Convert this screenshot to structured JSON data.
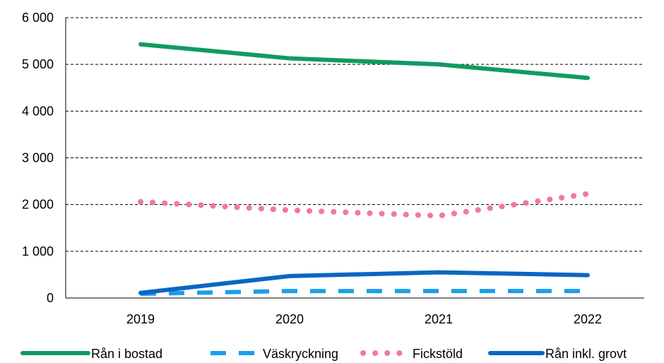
{
  "chart_data": {
    "type": "line",
    "categories": [
      "2019",
      "2020",
      "2021",
      "2022"
    ],
    "ylim": [
      0,
      6000
    ],
    "yticks": [
      0,
      1000,
      2000,
      3000,
      4000,
      5000,
      6000
    ],
    "ytick_labels": [
      "0",
      "1 000",
      "2 000",
      "3 000",
      "4 000",
      "5 000",
      "6 000"
    ],
    "grid": true,
    "legend_position": "bottom",
    "series": [
      {
        "name": "Rån i bostad",
        "values": [
          5430,
          5130,
          5000,
          4710
        ],
        "color": "#119a62",
        "style": "solid"
      },
      {
        "name": "Väskryckning",
        "values": [
          90,
          150,
          150,
          150
        ],
        "color": "#1a9fe8",
        "style": "dashed"
      },
      {
        "name": "Fickstöld",
        "values": [
          2060,
          1880,
          1760,
          2230
        ],
        "color": "#f2789e",
        "style": "dotted"
      },
      {
        "name": "Rån inkl. grovt",
        "values": [
          110,
          470,
          550,
          490
        ],
        "color": "#0a66c2",
        "style": "solid"
      }
    ]
  }
}
